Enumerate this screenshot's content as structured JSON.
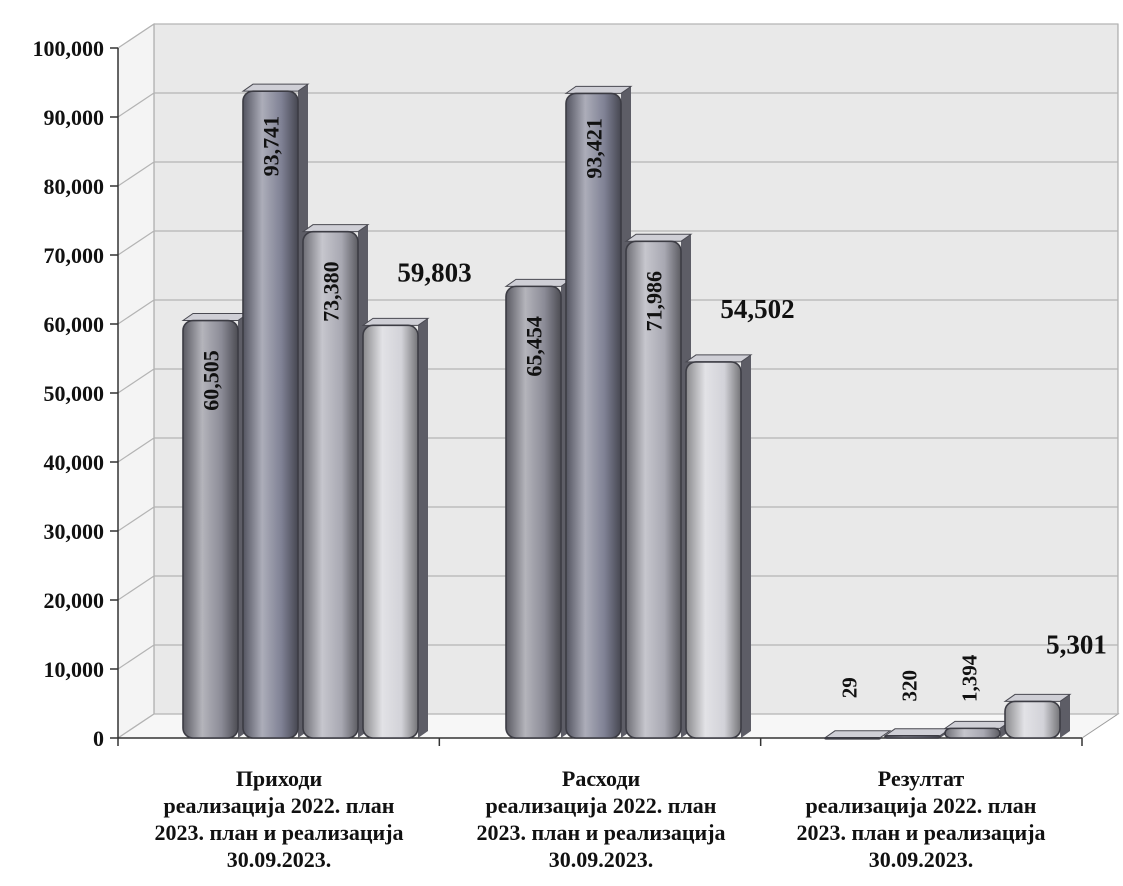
{
  "chart_data": {
    "type": "bar",
    "categories": [
      "Приходи\nреализација 2022. план\n2023. план и реализација\n30.09.2023.",
      "Расходи\nреализација 2022. план\n2023. план и реализација\n30.09.2023.",
      "Резултат\nреализација 2022. план\n2023. план и реализација\n30.09.2023."
    ],
    "series": [
      {
        "values": [
          60505,
          65454,
          29
        ]
      },
      {
        "values": [
          93741,
          93421,
          320
        ]
      },
      {
        "values": [
          73380,
          71986,
          1394
        ]
      },
      {
        "values": [
          59803,
          54502,
          5301
        ]
      }
    ],
    "data_labels": [
      [
        "60,505",
        "93,741",
        "73,380",
        "59,803"
      ],
      [
        "65,454",
        "93,421",
        "71,986",
        "54,502"
      ],
      [
        "29",
        "320",
        "1,394",
        "5,301"
      ]
    ],
    "y_ticks": [
      0,
      10000,
      20000,
      30000,
      40000,
      50000,
      60000,
      70000,
      80000,
      90000,
      100000
    ],
    "y_tick_labels": [
      "0",
      "10,000",
      "20,000",
      "30,000",
      "40,000",
      "50,000",
      "60,000",
      "70,000",
      "80,000",
      "90,000",
      "100,000"
    ],
    "ylim": [
      0,
      100000
    ],
    "grid": true,
    "legend": "none",
    "title": "",
    "xlabel": "",
    "ylabel": "",
    "style": "3d",
    "colors": {
      "wall": "#e9e9e9",
      "wall_edge": "#9c9c9c",
      "grid": "#b4b4b4",
      "axis": "#333333",
      "series": [
        "#8b8b96",
        "#7f8194",
        "#a8a8b2",
        "#d2d2d8"
      ]
    }
  }
}
